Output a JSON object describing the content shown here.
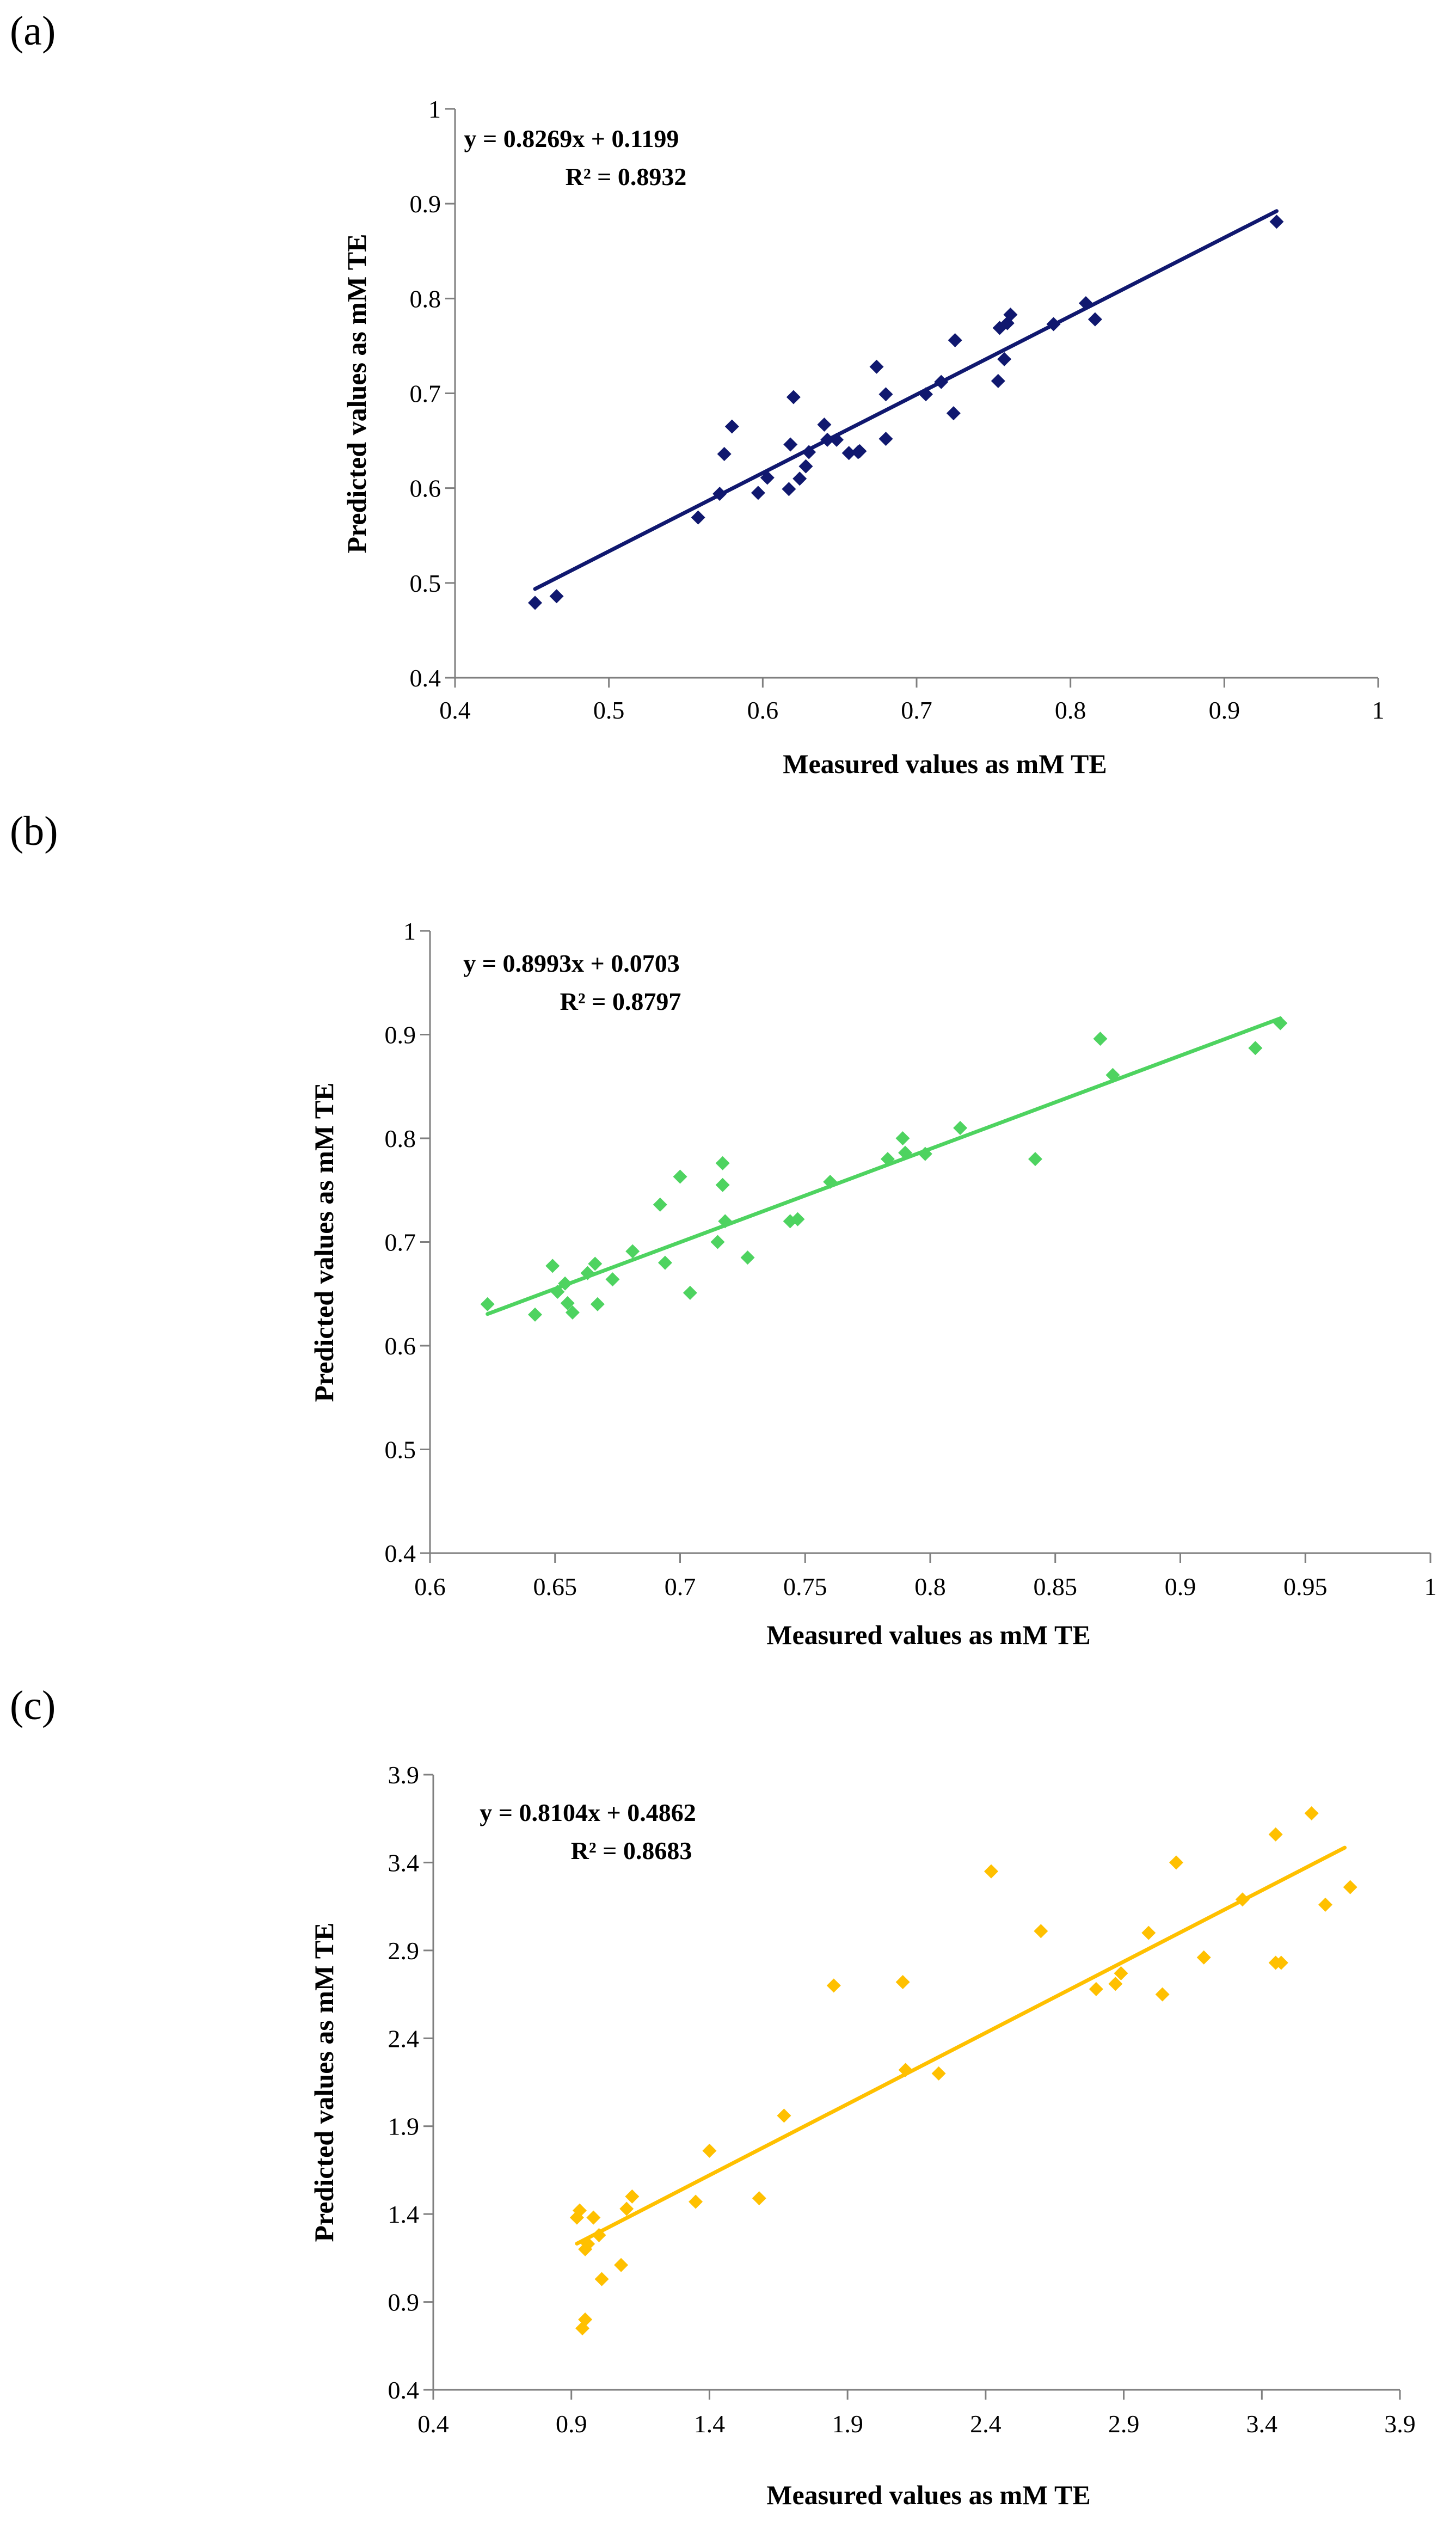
{
  "chart_data": [
    {
      "panel": "(a)",
      "type": "scatter",
      "xlabel": "Measured values as mM TE",
      "ylabel": "Predicted values as mM TE",
      "xlim": [
        0.4,
        1.0
      ],
      "ylim": [
        0.4,
        1.0
      ],
      "xticks": [
        "0.4",
        "0.5",
        "0.6",
        "0.7",
        "0.8",
        "0.9",
        "1"
      ],
      "yticks": [
        "0.4",
        "0.5",
        "0.6",
        "0.7",
        "0.8",
        "0.9",
        "1"
      ],
      "color": "#10186f",
      "trendline": {
        "slope": 0.8269,
        "intercept": 0.1199,
        "x_from": 0.452,
        "x_to": 0.934
      },
      "equation": "y = 0.8269x + 0.1199",
      "r2": "R² = 0.8932",
      "points": [
        [
          0.452,
          0.479
        ],
        [
          0.466,
          0.486
        ],
        [
          0.558,
          0.569
        ],
        [
          0.572,
          0.594
        ],
        [
          0.575,
          0.636
        ],
        [
          0.58,
          0.665
        ],
        [
          0.597,
          0.595
        ],
        [
          0.603,
          0.611
        ],
        [
          0.617,
          0.599
        ],
        [
          0.618,
          0.646
        ],
        [
          0.62,
          0.696
        ],
        [
          0.624,
          0.61
        ],
        [
          0.628,
          0.623
        ],
        [
          0.63,
          0.638
        ],
        [
          0.64,
          0.667
        ],
        [
          0.642,
          0.651
        ],
        [
          0.648,
          0.651
        ],
        [
          0.656,
          0.637
        ],
        [
          0.662,
          0.638
        ],
        [
          0.663,
          0.639
        ],
        [
          0.674,
          0.728
        ],
        [
          0.68,
          0.699
        ],
        [
          0.68,
          0.652
        ],
        [
          0.706,
          0.699
        ],
        [
          0.716,
          0.712
        ],
        [
          0.724,
          0.679
        ],
        [
          0.725,
          0.756
        ],
        [
          0.753,
          0.713
        ],
        [
          0.754,
          0.769
        ],
        [
          0.757,
          0.736
        ],
        [
          0.759,
          0.774
        ],
        [
          0.761,
          0.783
        ],
        [
          0.789,
          0.773
        ],
        [
          0.81,
          0.795
        ],
        [
          0.816,
          0.778
        ],
        [
          0.934,
          0.881
        ]
      ]
    },
    {
      "panel": "(b)",
      "type": "scatter",
      "xlabel": "Measured values as mM TE",
      "ylabel": "Predicted values as mM TE",
      "xlim": [
        0.6,
        1.0
      ],
      "ylim": [
        0.4,
        1.0
      ],
      "xticks": [
        "0.6",
        "0.65",
        "0.7",
        "0.75",
        "0.8",
        "0.85",
        "0.9",
        "0.95",
        "1"
      ],
      "yticks": [
        "0.4",
        "0.5",
        "0.6",
        "0.7",
        "0.8",
        "0.9",
        "1"
      ],
      "color": "#4ed360",
      "trendline": {
        "slope": 0.8993,
        "intercept": 0.0703,
        "x_from": 0.623,
        "x_to": 0.94
      },
      "equation": "y = 0.8993x + 0.0703",
      "r2": "R² = 0.8797",
      "points": [
        [
          0.623,
          0.64
        ],
        [
          0.642,
          0.63
        ],
        [
          0.649,
          0.677
        ],
        [
          0.651,
          0.652
        ],
        [
          0.654,
          0.66
        ],
        [
          0.655,
          0.641
        ],
        [
          0.657,
          0.632
        ],
        [
          0.663,
          0.67
        ],
        [
          0.666,
          0.679
        ],
        [
          0.667,
          0.64
        ],
        [
          0.673,
          0.664
        ],
        [
          0.681,
          0.691
        ],
        [
          0.692,
          0.736
        ],
        [
          0.694,
          0.68
        ],
        [
          0.7,
          0.763
        ],
        [
          0.704,
          0.651
        ],
        [
          0.715,
          0.7
        ],
        [
          0.717,
          0.776
        ],
        [
          0.717,
          0.755
        ],
        [
          0.718,
          0.72
        ],
        [
          0.727,
          0.685
        ],
        [
          0.744,
          0.72
        ],
        [
          0.747,
          0.722
        ],
        [
          0.76,
          0.758
        ],
        [
          0.783,
          0.78
        ],
        [
          0.789,
          0.8
        ],
        [
          0.79,
          0.786
        ],
        [
          0.798,
          0.785
        ],
        [
          0.812,
          0.81
        ],
        [
          0.842,
          0.78
        ],
        [
          0.868,
          0.896
        ],
        [
          0.873,
          0.861
        ],
        [
          0.93,
          0.887
        ],
        [
          0.94,
          0.911
        ]
      ]
    },
    {
      "panel": "(c)",
      "type": "scatter",
      "xlabel": "Measured values as mM TE",
      "ylabel": "Predicted values as mM TE",
      "xlim": [
        0.4,
        3.9
      ],
      "ylim": [
        0.4,
        3.9
      ],
      "xticks": [
        "0.4",
        "0.9",
        "1.4",
        "1.9",
        "2.4",
        "2.9",
        "3.4",
        "3.9"
      ],
      "yticks": [
        "0.4",
        "0.9",
        "1.4",
        "1.9",
        "2.4",
        "2.9",
        "3.4",
        "3.9"
      ],
      "color": "#ffc000",
      "trendline": {
        "slope": 0.8104,
        "intercept": 0.4862,
        "x_from": 0.92,
        "x_to": 3.7
      },
      "equation": "y = 0.8104x + 0.4862",
      "r2": "R² = 0.8683",
      "points": [
        [
          0.92,
          1.38
        ],
        [
          0.93,
          1.42
        ],
        [
          0.94,
          0.75
        ],
        [
          0.95,
          0.8
        ],
        [
          0.95,
          1.2
        ],
        [
          0.96,
          1.23
        ],
        [
          0.98,
          1.38
        ],
        [
          1.0,
          1.28
        ],
        [
          1.01,
          1.03
        ],
        [
          1.08,
          1.11
        ],
        [
          1.1,
          1.43
        ],
        [
          1.12,
          1.5
        ],
        [
          1.35,
          1.47
        ],
        [
          1.4,
          1.76
        ],
        [
          1.58,
          1.49
        ],
        [
          1.67,
          1.96
        ],
        [
          1.85,
          2.7
        ],
        [
          2.1,
          2.72
        ],
        [
          2.11,
          2.22
        ],
        [
          2.23,
          2.2
        ],
        [
          2.42,
          3.35
        ],
        [
          2.6,
          3.01
        ],
        [
          2.8,
          2.68
        ],
        [
          2.87,
          2.71
        ],
        [
          2.89,
          2.77
        ],
        [
          2.99,
          3.0
        ],
        [
          3.04,
          2.65
        ],
        [
          3.09,
          3.4
        ],
        [
          3.19,
          2.86
        ],
        [
          3.33,
          3.19
        ],
        [
          3.45,
          2.83
        ],
        [
          3.45,
          3.56
        ],
        [
          3.47,
          2.83
        ],
        [
          3.58,
          3.68
        ],
        [
          3.63,
          3.16
        ],
        [
          3.72,
          3.26
        ]
      ]
    }
  ]
}
